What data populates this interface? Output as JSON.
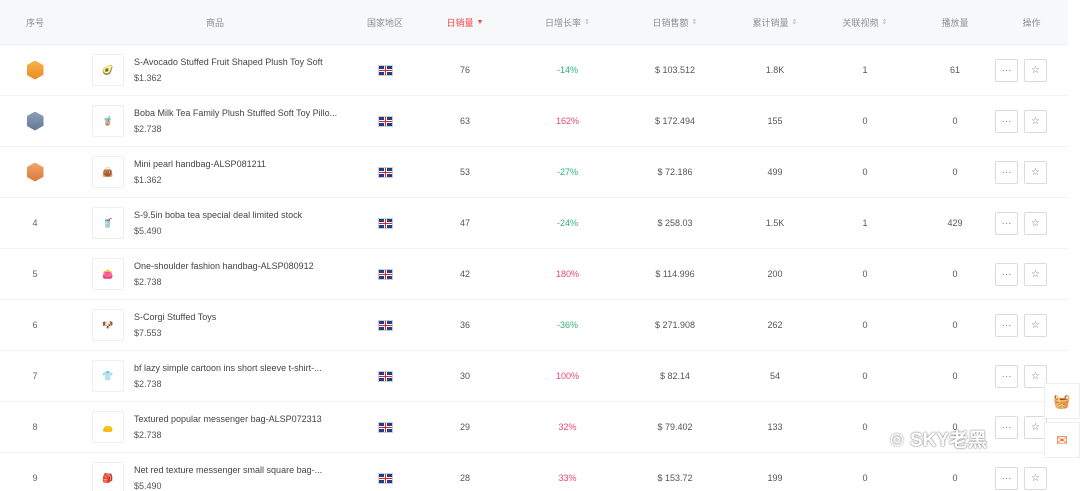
{
  "headers": {
    "idx": "序号",
    "product": "商品",
    "region": "国家地区",
    "daily": "日销量",
    "growth": "日增长率",
    "sales": "日销售额",
    "cumulative": "累计销量",
    "related": "关联视频",
    "plays": "播放量",
    "ops": "操作"
  },
  "rows": [
    {
      "idx": "1",
      "medal": "gold",
      "title": "S-Avocado Stuffed Fruit Shaped Plush Toy Soft",
      "price": "$1.362",
      "daily": "76",
      "growth": "-14%",
      "dir": "down",
      "sales": "$ 103.512",
      "cum": "1.8K",
      "rel": "1",
      "plays": "61",
      "thumb": "🥑"
    },
    {
      "idx": "2",
      "medal": "silver",
      "title": "Boba Milk Tea Family Plush Stuffed Soft Toy Pillo...",
      "price": "$2.738",
      "daily": "63",
      "growth": "162%",
      "dir": "up",
      "sales": "$ 172.494",
      "cum": "155",
      "rel": "0",
      "plays": "0",
      "thumb": "🧋"
    },
    {
      "idx": "3",
      "medal": "bronze",
      "title": "Mini pearl handbag-ALSP081211",
      "price": "$1.362",
      "daily": "53",
      "growth": "-27%",
      "dir": "down",
      "sales": "$ 72.186",
      "cum": "499",
      "rel": "0",
      "plays": "0",
      "thumb": "👜"
    },
    {
      "idx": "4",
      "medal": "",
      "title": "S-9.5in boba tea special deal limited stock",
      "price": "$5.490",
      "daily": "47",
      "growth": "-24%",
      "dir": "down",
      "sales": "$ 258.03",
      "cum": "1.5K",
      "rel": "1",
      "plays": "429",
      "thumb": "🥤"
    },
    {
      "idx": "5",
      "medal": "",
      "title": "One-shoulder fashion handbag-ALSP080912",
      "price": "$2.738",
      "daily": "42",
      "growth": "180%",
      "dir": "up",
      "sales": "$ 114.996",
      "cum": "200",
      "rel": "0",
      "plays": "0",
      "thumb": "👛"
    },
    {
      "idx": "6",
      "medal": "",
      "title": "S-Corgi Stuffed Toys",
      "price": "$7.553",
      "daily": "36",
      "growth": "-36%",
      "dir": "down",
      "sales": "$ 271.908",
      "cum": "262",
      "rel": "0",
      "plays": "0",
      "thumb": "🐶"
    },
    {
      "idx": "7",
      "medal": "",
      "title": "bf lazy simple cartoon ins short sleeve t-shirt-...",
      "price": "$2.738",
      "daily": "30",
      "growth": "100%",
      "dir": "up",
      "sales": "$ 82.14",
      "cum": "54",
      "rel": "0",
      "plays": "0",
      "thumb": "👕"
    },
    {
      "idx": "8",
      "medal": "",
      "title": "Textured popular messenger bag-ALSP072313",
      "price": "$2.738",
      "daily": "29",
      "growth": "32%",
      "dir": "up",
      "sales": "$ 79.402",
      "cum": "133",
      "rel": "0",
      "plays": "0",
      "thumb": "👝"
    },
    {
      "idx": "9",
      "medal": "",
      "title": "Net red texture messenger small square bag-...",
      "price": "$5.490",
      "daily": "28",
      "growth": "33%",
      "dir": "up",
      "sales": "$ 153.72",
      "cum": "199",
      "rel": "0",
      "plays": "0",
      "thumb": "🎒"
    }
  ],
  "watermark": "SKY老黑",
  "colors": {
    "up": "#f0456f",
    "down": "#2bb673",
    "active_sort": "#f04848"
  }
}
